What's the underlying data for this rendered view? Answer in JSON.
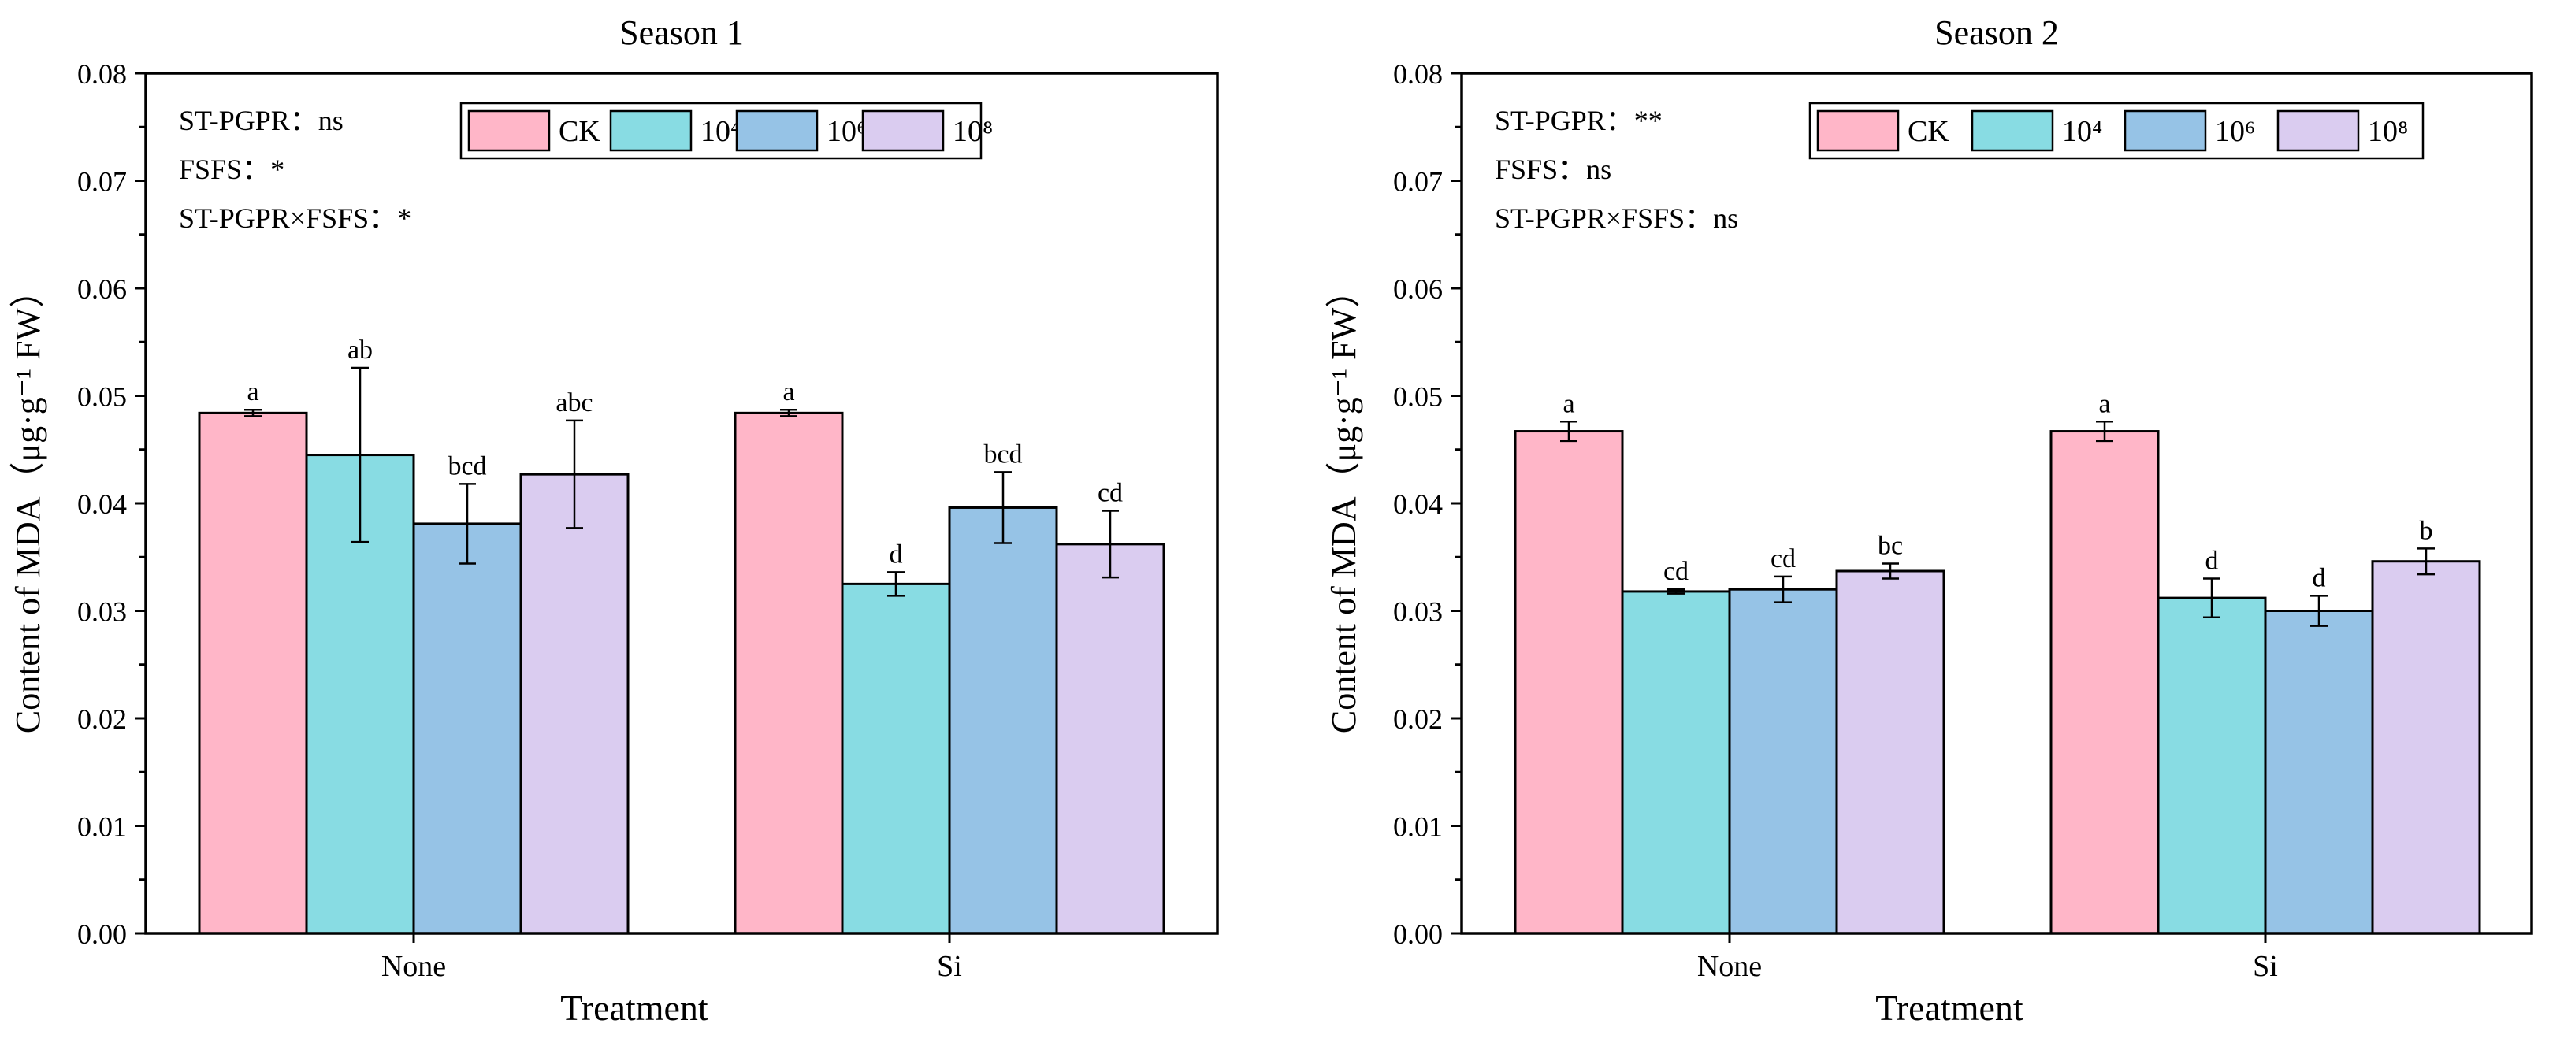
{
  "chart_data": [
    {
      "type": "bar",
      "title": "Season 1",
      "xlabel": "Treatment",
      "ylabel": "Content of  MDA（μg·g⁻¹ FW）",
      "ylim": [
        0,
        0.08
      ],
      "yticks": [
        "0.00",
        "0.01",
        "0.02",
        "0.03",
        "0.04",
        "0.05",
        "0.06",
        "0.07",
        "0.08"
      ],
      "categories": [
        "None",
        "Si"
      ],
      "series": [
        {
          "name": "CK",
          "values": [
            0.0484,
            0.0484
          ],
          "errors": [
            0.0003,
            0.0003
          ],
          "letters": [
            "a",
            "a"
          ]
        },
        {
          "name": "10⁴",
          "values": [
            0.0445,
            0.0325
          ],
          "errors": [
            0.0081,
            0.0011
          ],
          "letters": [
            "ab",
            "d"
          ]
        },
        {
          "name": "10⁶",
          "values": [
            0.0381,
            0.0396
          ],
          "errors": [
            0.0037,
            0.0033
          ],
          "letters": [
            "bcd",
            "bcd"
          ]
        },
        {
          "name": "10⁸",
          "values": [
            0.0427,
            0.0362
          ],
          "errors": [
            0.005,
            0.0031
          ],
          "letters": [
            "abc",
            "cd"
          ]
        }
      ],
      "annotations": [
        "ST-PGPR：ns",
        "FSFS：*",
        "ST-PGPR×FSFS：*"
      ],
      "legend_position": "top-right"
    },
    {
      "type": "bar",
      "title": "Season 2",
      "xlabel": "Treatment",
      "ylabel": "Content of  MDA（μg·g⁻¹ FW）",
      "ylim": [
        0,
        0.08
      ],
      "yticks": [
        "0.00",
        "0.01",
        "0.02",
        "0.03",
        "0.04",
        "0.05",
        "0.06",
        "0.07",
        "0.08"
      ],
      "categories": [
        "None",
        "Si"
      ],
      "series": [
        {
          "name": "CK",
          "values": [
            0.0467,
            0.0467
          ],
          "errors": [
            0.0009,
            0.0009
          ],
          "letters": [
            "a",
            "a"
          ]
        },
        {
          "name": "10⁴",
          "values": [
            0.0318,
            0.0312
          ],
          "errors": [
            0.0002,
            0.0018
          ],
          "letters": [
            "cd",
            "d"
          ]
        },
        {
          "name": "10⁶",
          "values": [
            0.032,
            0.03
          ],
          "errors": [
            0.0012,
            0.0014
          ],
          "letters": [
            "cd",
            "d"
          ]
        },
        {
          "name": "10⁸",
          "values": [
            0.0337,
            0.0346
          ],
          "errors": [
            0.0007,
            0.0012
          ],
          "letters": [
            "bc",
            "b"
          ]
        }
      ],
      "annotations": [
        "ST-PGPR：**",
        "FSFS：ns",
        "ST-PGPR×FSFS：ns"
      ],
      "legend_position": "top-right"
    }
  ],
  "colors": {
    "CK": "#FFB6C8",
    "10⁴": "#88DCE3",
    "10⁶": "#96C3E6",
    "10⁸": "#DACCF0",
    "axis": "#000000"
  }
}
